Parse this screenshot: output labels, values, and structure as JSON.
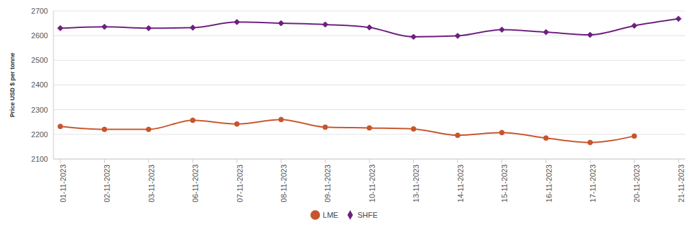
{
  "chart_data": {
    "type": "line",
    "y_label": "Price USD $ per tonne",
    "categories": [
      "01-11-2023",
      "02-11-2023",
      "03-11-2023",
      "06-11-2023",
      "07-11-2023",
      "08-11-2023",
      "09-11-2023",
      "10-11-2023",
      "13-11-2023",
      "14-11-2023",
      "15-11-2023",
      "16-11-2023",
      "17-11-2023",
      "20-11-2023",
      "21-11-2023"
    ],
    "series": [
      {
        "name": "LME",
        "color": "#c8552c",
        "marker": "circle",
        "line_style": "solid",
        "values": [
          2232,
          2220,
          2220,
          2257,
          2242,
          2260,
          2229,
          2226,
          2222,
          2196,
          2207,
          2185,
          2167,
          2193,
          null
        ]
      },
      {
        "name": "SHFE",
        "color": "#6d1f7e",
        "marker": "diamond",
        "line_style": "solid",
        "values": [
          2630,
          2636,
          2630,
          2632,
          2655,
          2650,
          2645,
          2633,
          2595,
          2599,
          2624,
          2614,
          2603,
          2640,
          2668
        ]
      }
    ],
    "ylim": [
      2100,
      2700
    ],
    "yticks": [
      2100,
      2200,
      2300,
      2400,
      2500,
      2600,
      2700
    ],
    "grid": true,
    "legend": "bottom"
  }
}
